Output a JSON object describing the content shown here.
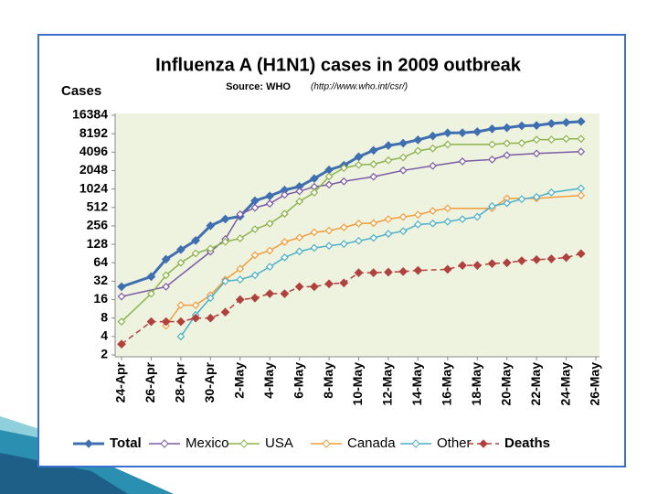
{
  "chart_data": {
    "type": "line",
    "title": "Influenza A (H1N1) cases in 2009 outbreak",
    "subtitle": "Source: WHO",
    "source_url": "(http://www.who.int/csr/)",
    "y_label": "Cases",
    "log_scale": true,
    "grid": false,
    "legend": "bottom",
    "xlim": [
      "24-Apr",
      "26-May"
    ],
    "xticks": [
      "24-Apr",
      "26-Apr",
      "28-Apr",
      "30-Apr",
      "2-May",
      "4-May",
      "6-May",
      "8-May",
      "10-May",
      "12-May",
      "14-May",
      "16-May",
      "18-May",
      "20-May",
      "22-May",
      "24-May",
      "26-May"
    ],
    "ylim": [
      2,
      16384
    ],
    "yticks": [
      2,
      4,
      8,
      16,
      32,
      64,
      128,
      256,
      512,
      1024,
      2048,
      4096,
      8192,
      16384
    ],
    "series": [
      {
        "name": "Total",
        "color": "#3f6fb0",
        "x": [
          "24-Apr",
          "26-Apr",
          "27-Apr",
          "28-Apr",
          "29-Apr",
          "30-Apr",
          "1-May",
          "2-May",
          "3-May",
          "4-May",
          "5-May",
          "6-May",
          "7-May",
          "8-May",
          "9-May",
          "10-May",
          "11-May",
          "12-May",
          "13-May",
          "14-May",
          "15-May",
          "16-May",
          "17-May",
          "18-May",
          "19-May",
          "20-May",
          "21-May",
          "22-May",
          "23-May",
          "24-May",
          "25-May"
        ],
        "values": [
          26,
          38,
          73,
          105,
          148,
          257,
          331,
          367,
          658,
          787,
          985,
          1124,
          1516,
          2099,
          2500,
          3440,
          4379,
          5251,
          5728,
          6497,
          7520,
          8451,
          8480,
          8829,
          9830,
          10243,
          11034,
          11168,
          12022,
          12515,
          12954
        ]
      },
      {
        "name": "Mexico",
        "color": "#7b5aa6",
        "x": [
          "24-Apr",
          "27-Apr",
          "30-Apr",
          "1-May",
          "2-May",
          "3-May",
          "4-May",
          "5-May",
          "6-May",
          "7-May",
          "8-May",
          "9-May",
          "11-May",
          "13-May",
          "15-May",
          "17-May",
          "19-May",
          "20-May",
          "22-May",
          "25-May"
        ],
        "values": [
          18,
          26,
          97,
          156,
          397,
          506,
          590,
          822,
          942,
          1112,
          1204,
          1364,
          1626,
          2059,
          2446,
          2895,
          3103,
          3648,
          3892,
          4174
        ]
      },
      {
        "name": "USA",
        "color": "#8db34c",
        "x": [
          "24-Apr",
          "26-Apr",
          "27-Apr",
          "28-Apr",
          "29-Apr",
          "30-Apr",
          "1-May",
          "2-May",
          "3-May",
          "4-May",
          "5-May",
          "6-May",
          "7-May",
          "8-May",
          "9-May",
          "10-May",
          "11-May",
          "12-May",
          "13-May",
          "14-May",
          "15-May",
          "16-May",
          "19-May",
          "20-May",
          "21-May",
          "22-May",
          "23-May",
          "24-May",
          "25-May"
        ],
        "values": [
          7,
          20,
          40,
          64,
          91,
          109,
          141,
          160,
          226,
          279,
          403,
          642,
          896,
          1639,
          2254,
          2532,
          2600,
          3009,
          3352,
          4298,
          4714,
          5469,
          5469,
          5710,
          5764,
          6552,
          6552,
          6764,
          6764
        ]
      },
      {
        "name": "Canada",
        "color": "#f39c3c",
        "x": [
          "27-Apr",
          "28-Apr",
          "29-Apr",
          "30-Apr",
          "1-May",
          "2-May",
          "3-May",
          "4-May",
          "5-May",
          "6-May",
          "7-May",
          "8-May",
          "9-May",
          "10-May",
          "11-May",
          "12-May",
          "13-May",
          "14-May",
          "15-May",
          "16-May",
          "19-May",
          "20-May",
          "22-May",
          "25-May"
        ],
        "values": [
          6,
          13,
          13,
          19,
          34,
          51,
          85,
          101,
          140,
          165,
          201,
          214,
          242,
          280,
          284,
          330,
          358,
          389,
          449,
          496,
          496,
          719,
          719,
          805
        ]
      },
      {
        "name": "Other",
        "color": "#4bb0c8",
        "x": [
          "28-Apr",
          "29-Apr",
          "30-Apr",
          "1-May",
          "2-May",
          "3-May",
          "4-May",
          "5-May",
          "6-May",
          "7-May",
          "8-May",
          "9-May",
          "10-May",
          "11-May",
          "12-May",
          "13-May",
          "14-May",
          "15-May",
          "16-May",
          "17-May",
          "18-May",
          "19-May",
          "20-May",
          "21-May",
          "22-May",
          "23-May",
          "25-May"
        ],
        "values": [
          4,
          9,
          17,
          32,
          34,
          40,
          55,
          78,
          98,
          112,
          121,
          130,
          146,
          163,
          190,
          210,
          270,
          280,
          300,
          330,
          360,
          540,
          600,
          700,
          760,
          900,
          1050
        ]
      },
      {
        "name": "Deaths",
        "color": "#b0413e",
        "dashed": true,
        "x": [
          "24-Apr",
          "26-Apr",
          "27-Apr",
          "28-Apr",
          "29-Apr",
          "30-Apr",
          "1-May",
          "2-May",
          "3-May",
          "4-May",
          "5-May",
          "6-May",
          "7-May",
          "8-May",
          "9-May",
          "10-May",
          "11-May",
          "12-May",
          "13-May",
          "14-May",
          "16-May",
          "17-May",
          "18-May",
          "19-May",
          "20-May",
          "21-May",
          "22-May",
          "23-May",
          "24-May",
          "25-May"
        ],
        "values": [
          3,
          7,
          7,
          7,
          8,
          8,
          10,
          16,
          17,
          20,
          20,
          26,
          26,
          29,
          30,
          44,
          44,
          45,
          46,
          48,
          50,
          58,
          58,
          62,
          64,
          69,
          72,
          74,
          78,
          90
        ]
      }
    ]
  }
}
